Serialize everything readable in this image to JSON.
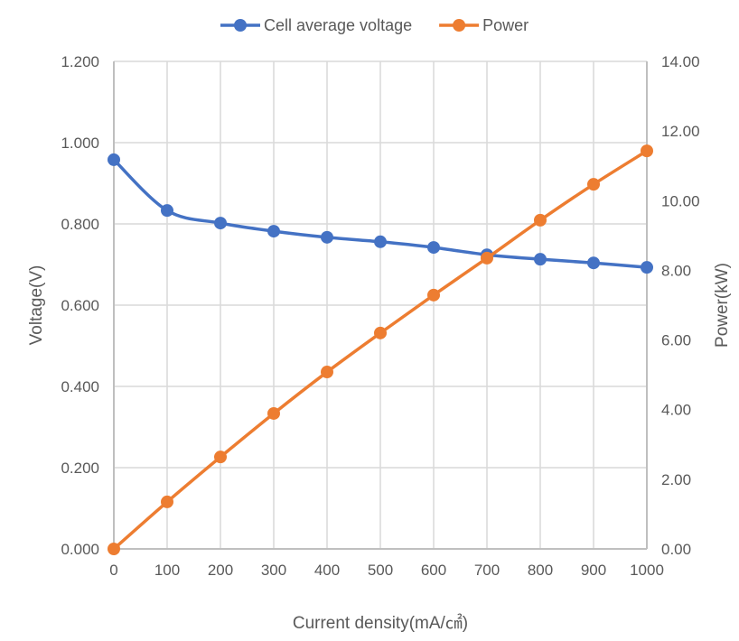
{
  "chart_data": {
    "type": "line",
    "title": "",
    "xlabel": "Current density(mA/㎠)",
    "ylabel": "Voltage(V)",
    "y2label": "Power(kW)",
    "x": [
      0,
      100,
      200,
      300,
      400,
      500,
      600,
      700,
      800,
      900,
      1000
    ],
    "xlim": [
      0,
      1000
    ],
    "ylim": [
      0,
      1.2
    ],
    "y2lim": [
      0,
      14
    ],
    "xticks": [
      "0",
      "100",
      "200",
      "300",
      "400",
      "500",
      "600",
      "700",
      "800",
      "900",
      "1000"
    ],
    "yticks": [
      "0.000",
      "0.200",
      "0.400",
      "0.600",
      "0.800",
      "1.000",
      "1.200"
    ],
    "y2ticks": [
      "0.00",
      "2.00",
      "4.00",
      "6.00",
      "8.00",
      "10.00",
      "12.00",
      "14.00"
    ],
    "grid": true,
    "legend_position": "top",
    "series": [
      {
        "name": "Cell average voltage",
        "axis": "left",
        "color": "#4472C4",
        "values": [
          0.958,
          0.833,
          0.802,
          0.782,
          0.767,
          0.756,
          0.742,
          0.724,
          0.713,
          0.704,
          0.693
        ]
      },
      {
        "name": "Power",
        "axis": "right",
        "color": "#ED7D31",
        "values": [
          0.0,
          1.35,
          2.64,
          3.89,
          5.08,
          6.2,
          7.29,
          8.35,
          9.44,
          10.47,
          11.43
        ]
      }
    ]
  }
}
